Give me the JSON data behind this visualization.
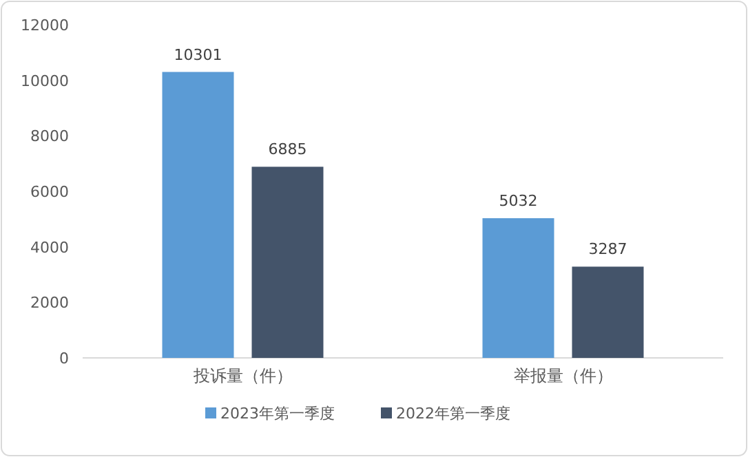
{
  "chart_data": {
    "type": "bar",
    "categories": [
      "投诉量（件）",
      "举报量（件）"
    ],
    "series": [
      {
        "name": "2023年第一季度",
        "color": "#5b9bd5",
        "values": [
          10301,
          5032
        ]
      },
      {
        "name": "2022年第一季度",
        "color": "#44546a",
        "values": [
          6885,
          3287
        ]
      }
    ],
    "ylim": [
      0,
      12000
    ],
    "yticks": [
      0,
      2000,
      4000,
      6000,
      8000,
      10000,
      12000
    ],
    "data_labels": true,
    "legend": "bottom",
    "grid": false
  }
}
